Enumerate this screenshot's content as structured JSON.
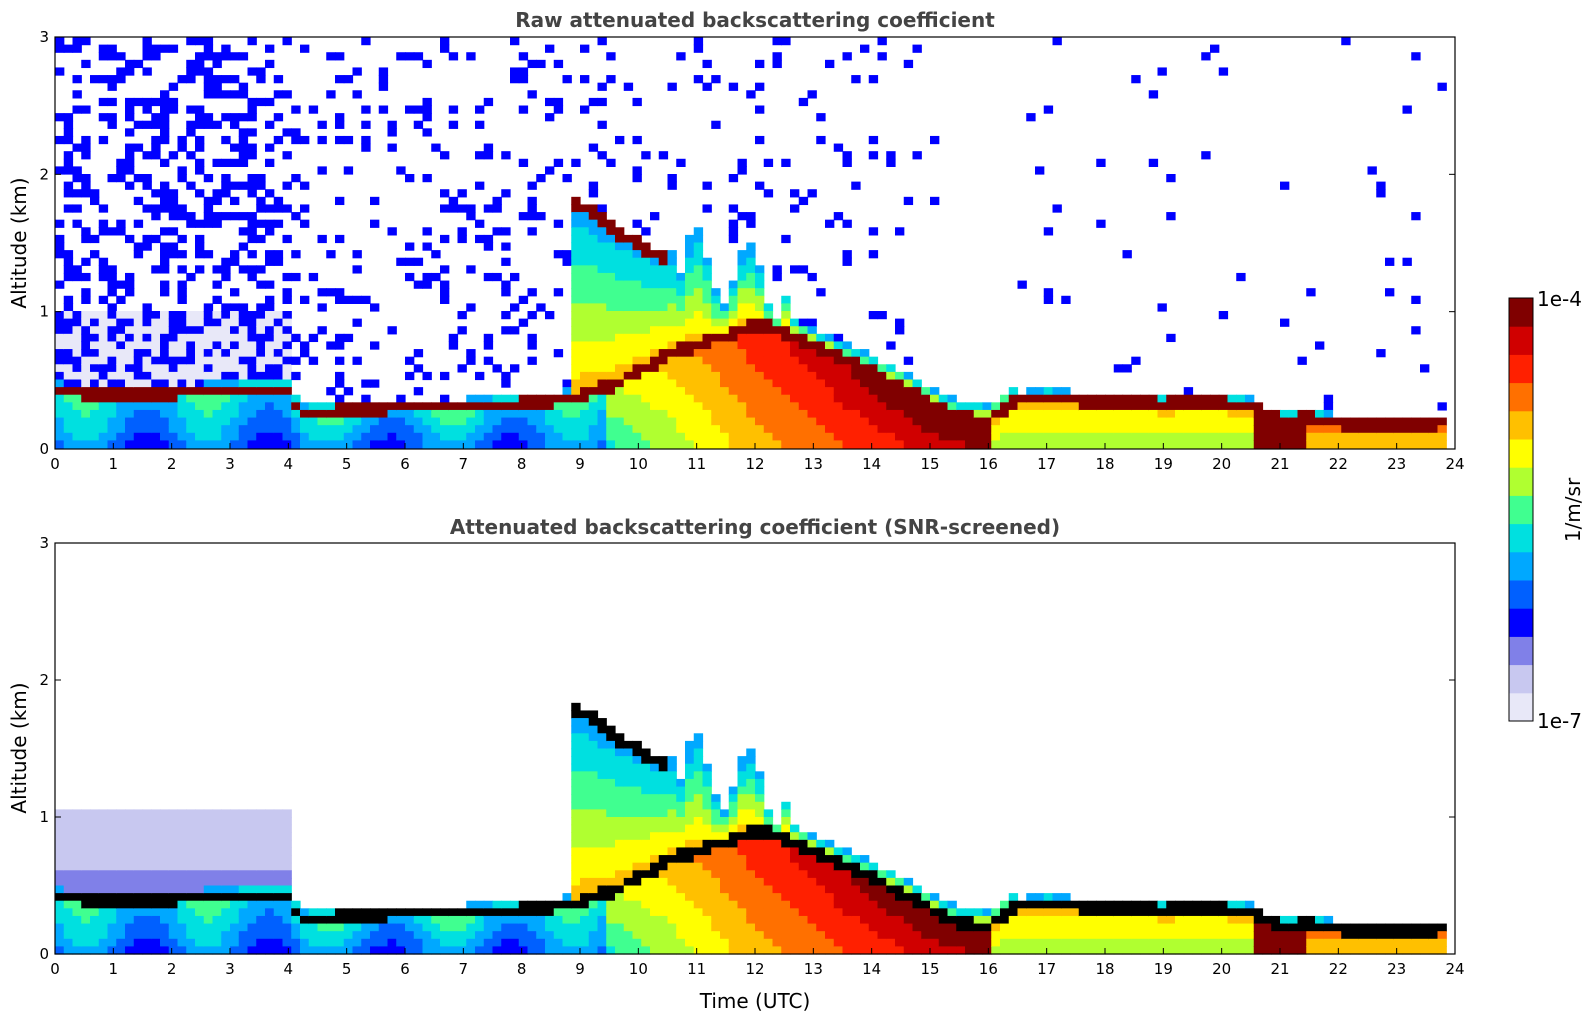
{
  "chart_data": [
    {
      "type": "heatmap",
      "title": "Raw attenuated backscattering coefficient",
      "xlabel": "",
      "ylabel": "Altitude (km)",
      "xlim": [
        0,
        24
      ],
      "ylim": [
        0,
        3
      ],
      "x_ticks": [
        "0",
        "1",
        "2",
        "3",
        "4",
        "5",
        "6",
        "7",
        "8",
        "9",
        "10",
        "11",
        "12",
        "13",
        "14",
        "15",
        "16",
        "17",
        "18",
        "19",
        "20",
        "21",
        "22",
        "23",
        "24"
      ],
      "y_ticks": [
        "0",
        "1",
        "2",
        "3"
      ],
      "screened": false,
      "features": {
        "boundary_layer_top_km": [
          [
            0,
            0.42
          ],
          [
            0.5,
            0.4
          ],
          [
            1,
            0.39
          ],
          [
            2,
            0.4
          ],
          [
            3,
            0.42
          ],
          [
            4,
            0.43
          ],
          [
            4.2,
            0.25
          ],
          [
            5,
            0.27
          ],
          [
            6,
            0.3
          ],
          [
            7,
            0.3
          ],
          [
            8,
            0.32
          ],
          [
            8.8,
            0.36
          ],
          [
            9.5,
            0.45
          ],
          [
            10,
            0.55
          ],
          [
            10.5,
            0.68
          ],
          [
            11,
            0.75
          ],
          [
            11.5,
            0.82
          ],
          [
            12,
            0.9
          ],
          [
            12.5,
            0.85
          ],
          [
            13,
            0.75
          ],
          [
            13.5,
            0.65
          ],
          [
            14,
            0.55
          ],
          [
            14.5,
            0.45
          ],
          [
            15,
            0.33
          ],
          [
            15.5,
            0.22
          ],
          [
            16,
            0.2
          ],
          [
            16.5,
            0.35
          ],
          [
            17,
            0.37
          ],
          [
            18,
            0.33
          ],
          [
            19,
            0.32
          ],
          [
            20,
            0.33
          ],
          [
            20.5,
            0.3
          ],
          [
            21,
            0.2
          ],
          [
            21.5,
            0.22
          ],
          [
            22,
            0.18
          ],
          [
            23,
            0.16
          ],
          [
            23.8,
            0.18
          ]
        ],
        "elevated_layer_km": [
          [
            8.8,
            1.82
          ],
          [
            9.2,
            1.72
          ],
          [
            9.6,
            1.58
          ],
          [
            10,
            1.48
          ],
          [
            10.4,
            1.38
          ]
        ]
      }
    },
    {
      "type": "heatmap",
      "title": "Attenuated backscattering coefficient (SNR-screened)",
      "xlabel": "Time (UTC)",
      "ylabel": "Altitude (km)",
      "xlim": [
        0,
        24
      ],
      "ylim": [
        0,
        3
      ],
      "x_ticks": [
        "0",
        "1",
        "2",
        "3",
        "4",
        "5",
        "6",
        "7",
        "8",
        "9",
        "10",
        "11",
        "12",
        "13",
        "14",
        "15",
        "16",
        "17",
        "18",
        "19",
        "20",
        "21",
        "22",
        "23",
        "24"
      ],
      "y_ticks": [
        "0",
        "1",
        "2",
        "3"
      ],
      "screened": true
    }
  ],
  "colorbar": {
    "max_label": "1e-4",
    "min_label": "1e-7",
    "unit_label": "1/m/sr",
    "colors": [
      "#e8e8f8",
      "#c8c8f0",
      "#8080e8",
      "#0000ff",
      "#0060ff",
      "#00a8ff",
      "#00e0e0",
      "#40ff90",
      "#b0ff30",
      "#ffff00",
      "#ffc000",
      "#ff7000",
      "#ff2000",
      "#d00000",
      "#800000"
    ]
  }
}
